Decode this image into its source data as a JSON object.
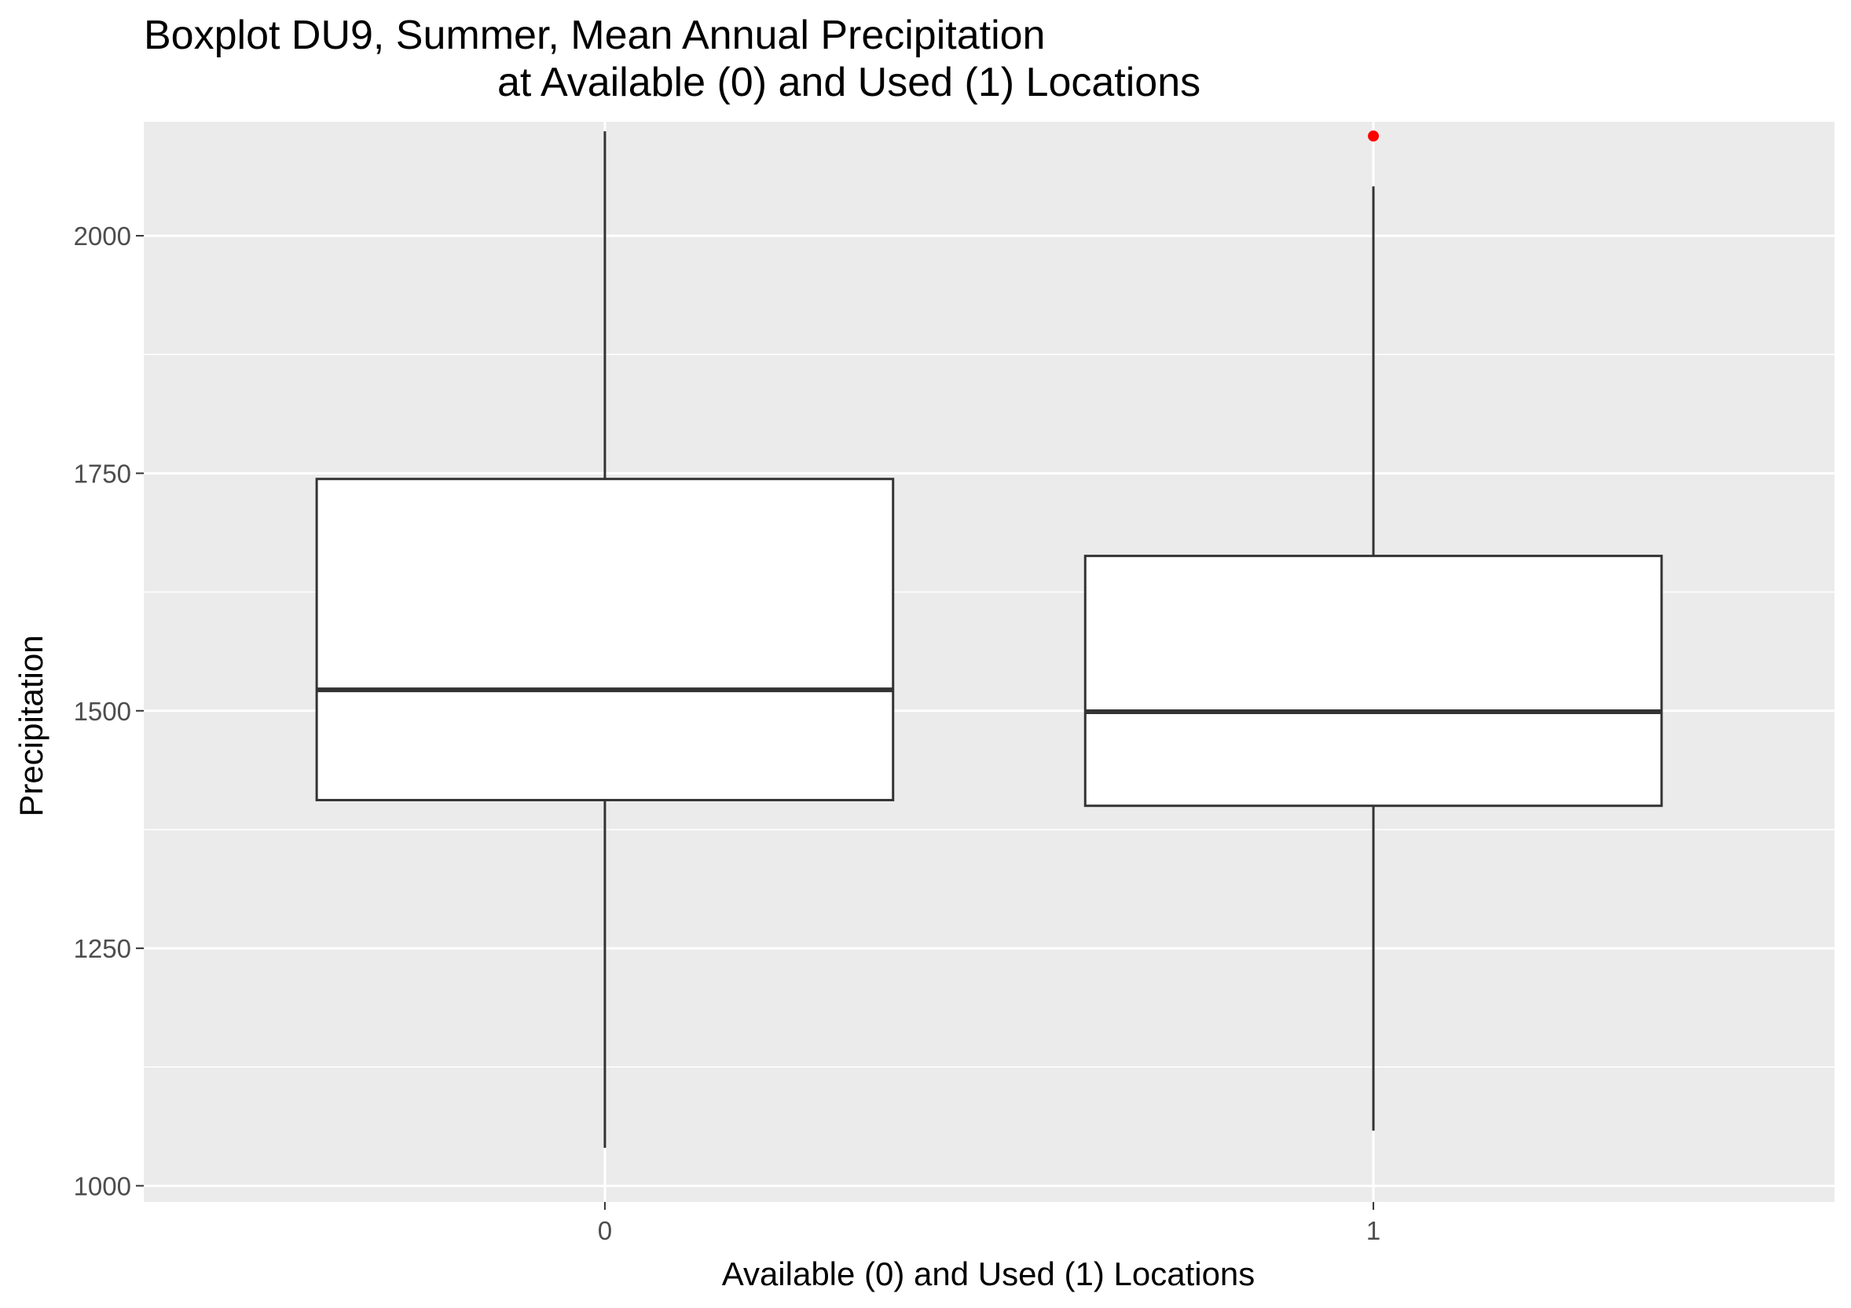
{
  "chart_data": {
    "type": "boxplot",
    "title_lines": [
      "Boxplot DU9, Summer, Mean Annual Precipitation",
      "at Available (0) and Used (1) Locations"
    ],
    "xlabel": "Available (0) and Used (1) Locations",
    "ylabel": "Precipitation",
    "categories": [
      "0",
      "1"
    ],
    "ylim": [
      983,
      2120
    ],
    "yticks": [
      1000,
      1250,
      1500,
      1750,
      2000
    ],
    "yticks_labels": [
      "1000",
      "1250",
      "1500",
      "1750",
      "2000"
    ],
    "grid": true,
    "boxes": [
      {
        "category": "0",
        "min": 1040,
        "q1": 1406,
        "median": 1522,
        "q3": 1744,
        "max": 2110,
        "outliers": []
      },
      {
        "category": "1",
        "min": 1058,
        "q1": 1400,
        "median": 1499,
        "q3": 1663,
        "max": 2052,
        "outliers": [
          2105
        ]
      }
    ],
    "colors": {
      "panel": "#EBEBEB",
      "grid": "#FFFFFF",
      "box_fill": "#FFFFFF",
      "box_line": "#333333",
      "outlier": "#FF0000"
    }
  }
}
